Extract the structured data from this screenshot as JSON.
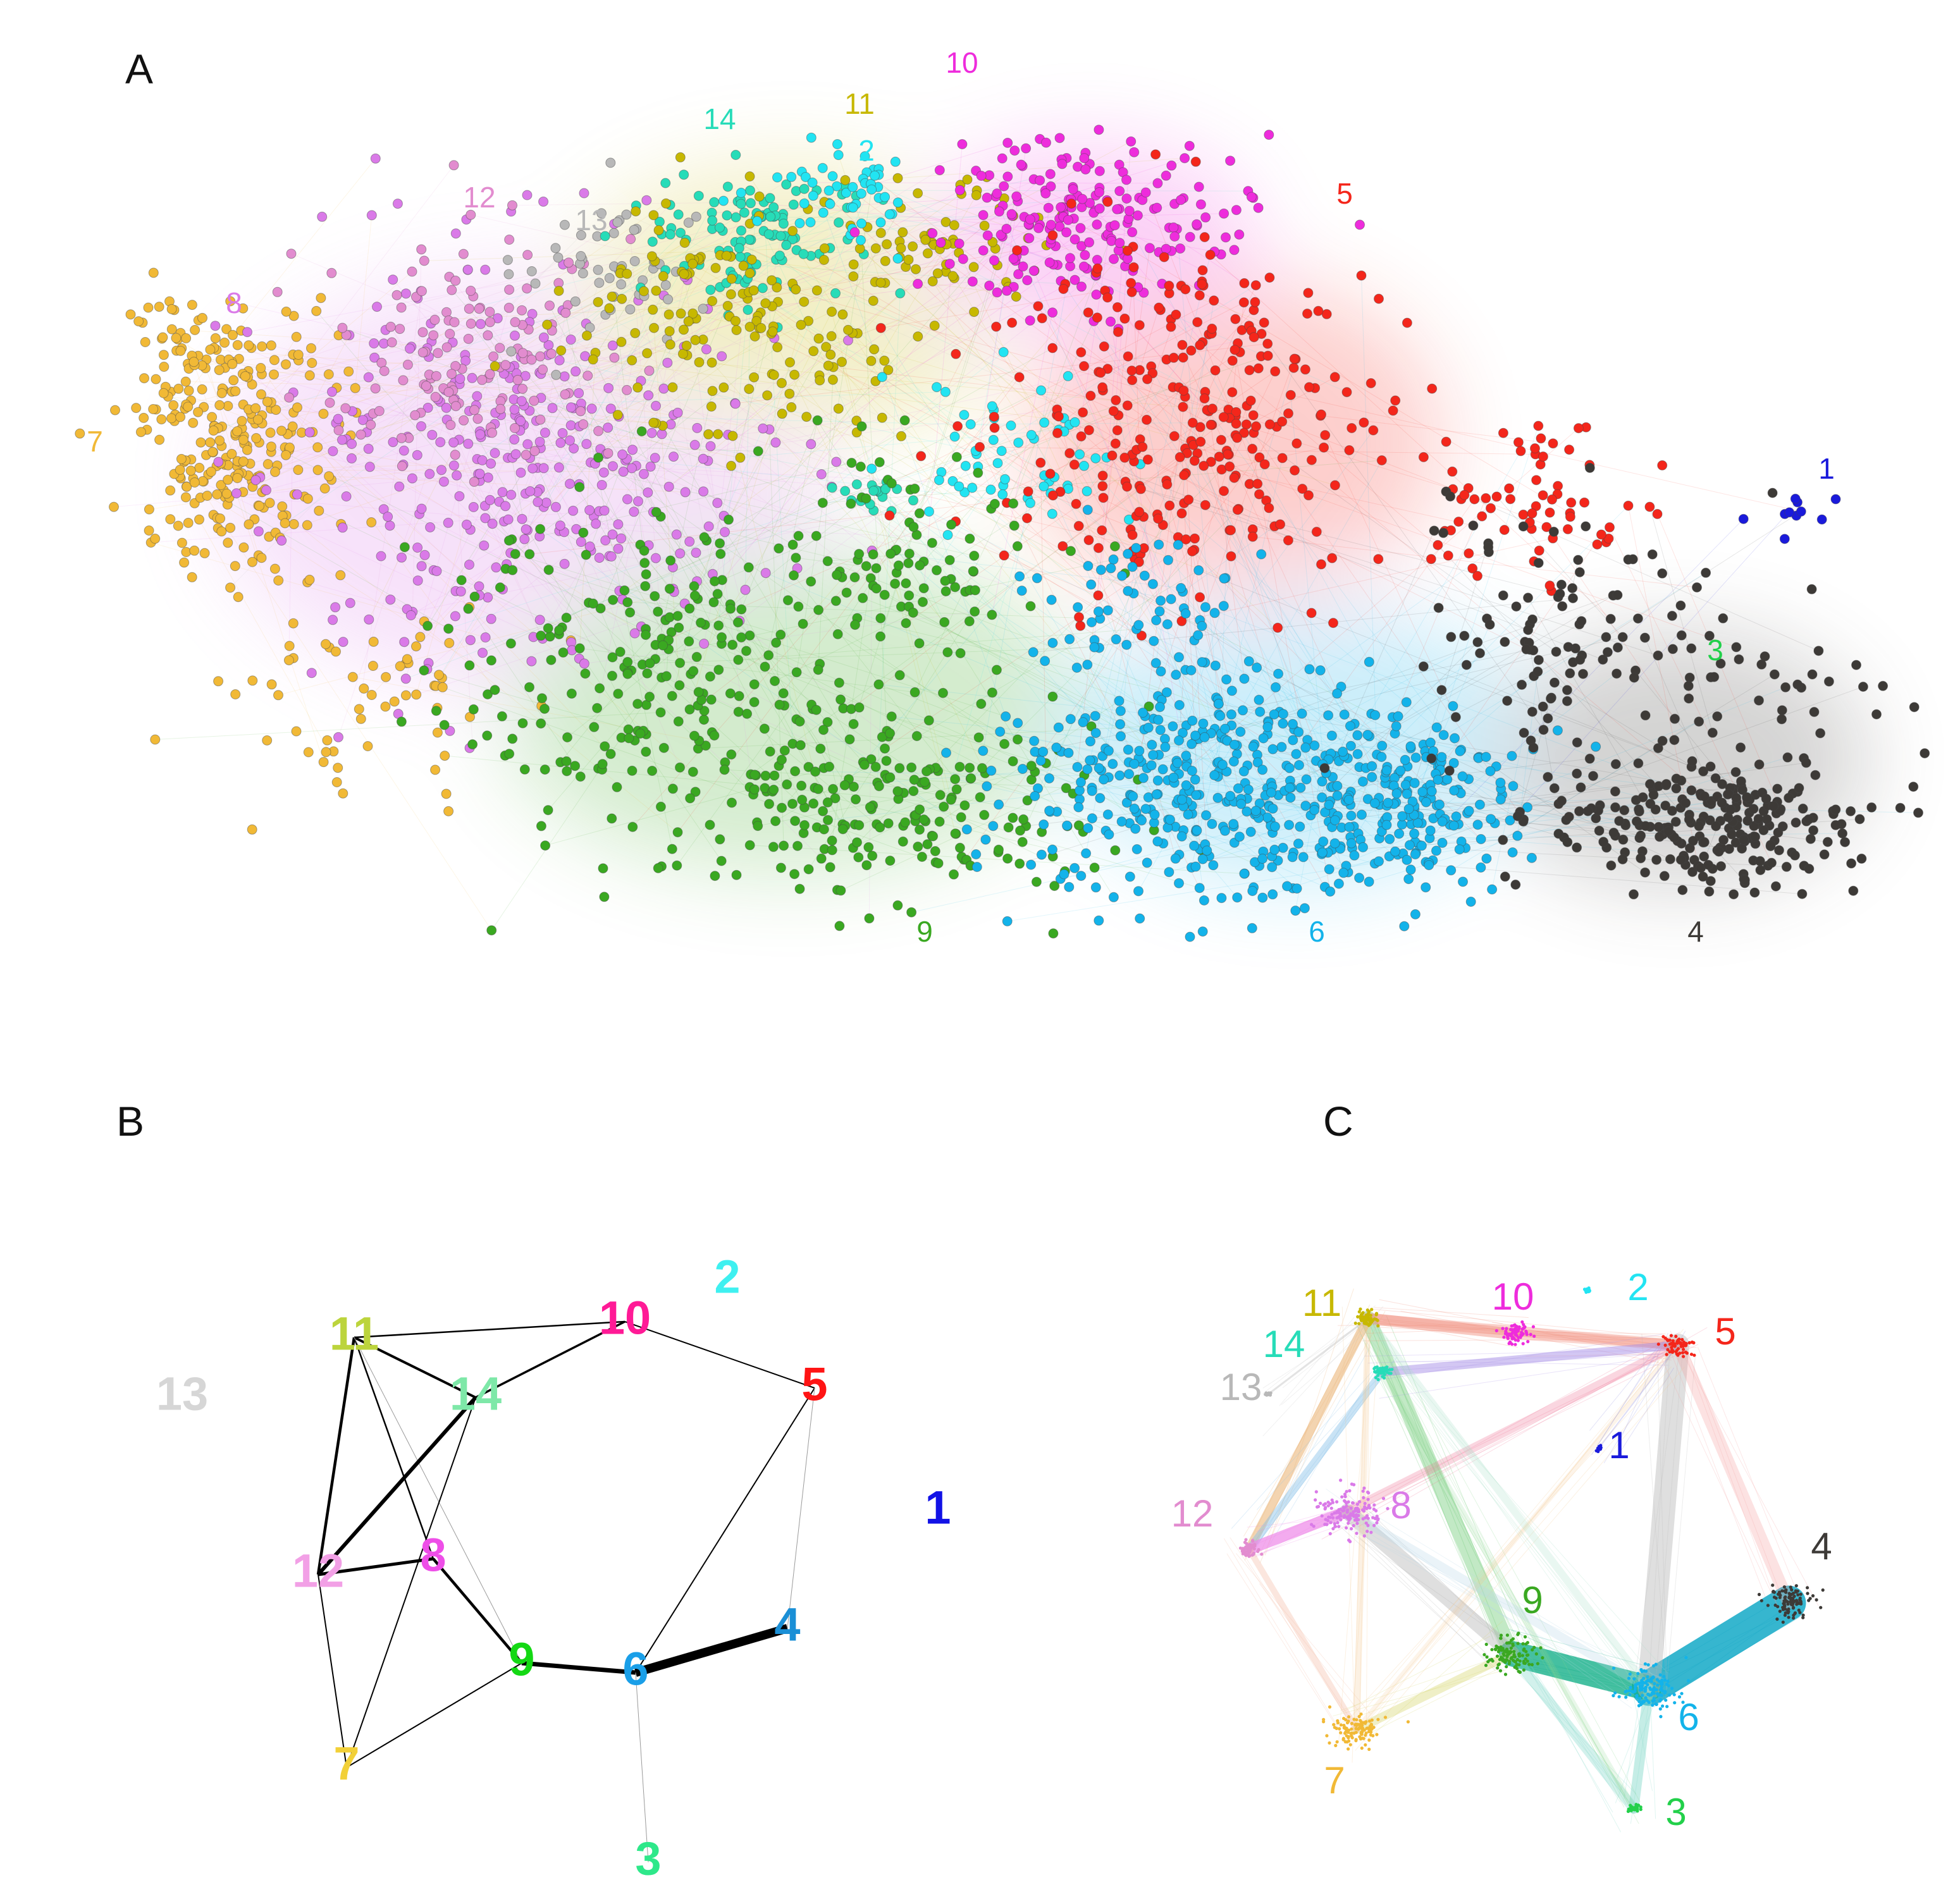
{
  "panels": {
    "a": {
      "letter": "A"
    },
    "b": {
      "letter": "B"
    },
    "c": {
      "letter": "C"
    }
  },
  "clusters": [
    {
      "id": "1",
      "label": "1",
      "color": "#1a1adb"
    },
    {
      "id": "2",
      "label": "2",
      "color": "#22e4f2"
    },
    {
      "id": "3",
      "label": "3",
      "color": "#22d04a"
    },
    {
      "id": "4",
      "label": "4",
      "color": "#3d3a37"
    },
    {
      "id": "5",
      "label": "5",
      "color": "#f4261b"
    },
    {
      "id": "6",
      "label": "6",
      "color": "#13b3ea"
    },
    {
      "id": "7",
      "label": "7",
      "color": "#f1b936"
    },
    {
      "id": "8",
      "label": "8",
      "color": "#da7ae8"
    },
    {
      "id": "9",
      "label": "9",
      "color": "#3aa821"
    },
    {
      "id": "10",
      "label": "10",
      "color": "#ee2cdc"
    },
    {
      "id": "11",
      "label": "11",
      "color": "#c7b800"
    },
    {
      "id": "12",
      "label": "12",
      "color": "#e28ccf"
    },
    {
      "id": "13",
      "label": "13",
      "color": "#b8b8b8"
    },
    {
      "id": "14",
      "label": "14",
      "color": "#27dcb8"
    }
  ],
  "b_colors": {
    "1": "#1212e6",
    "2": "#3ff0f0",
    "3": "#2ee88a",
    "4": "#1a8fd6",
    "5": "#ff1414",
    "6": "#1a9fe8",
    "7": "#f2d038",
    "8": "#ee4ee8",
    "9": "#14d814",
    "10": "#ff1a96",
    "11": "#bcd43c",
    "12": "#f2a0e6",
    "13": "#d6d6d6",
    "14": "#7ee8a8"
  },
  "b_edges": [
    {
      "from": "11",
      "to": "10",
      "weight": 2.5
    },
    {
      "from": "11",
      "to": "14",
      "weight": 4
    },
    {
      "from": "11",
      "to": "12",
      "weight": 4.5
    },
    {
      "from": "11",
      "to": "8",
      "weight": 2.5
    },
    {
      "from": "11",
      "to": "9",
      "weight": 1
    },
    {
      "from": "14",
      "to": "10",
      "weight": 3.5
    },
    {
      "from": "14",
      "to": "12",
      "weight": 6
    },
    {
      "from": "14",
      "to": "7",
      "weight": 2
    },
    {
      "from": "12",
      "to": "8",
      "weight": 5
    },
    {
      "from": "12",
      "to": "7",
      "weight": 2
    },
    {
      "from": "8",
      "to": "9",
      "weight": 4.5
    },
    {
      "from": "7",
      "to": "9",
      "weight": 2
    },
    {
      "from": "9",
      "to": "6",
      "weight": 7
    },
    {
      "from": "6",
      "to": "4",
      "weight": 14
    },
    {
      "from": "6",
      "to": "5",
      "weight": 2
    },
    {
      "from": "6",
      "to": "3",
      "weight": 1
    },
    {
      "from": "10",
      "to": "5",
      "weight": 2
    },
    {
      "from": "5",
      "to": "4",
      "weight": 1
    }
  ],
  "c_edges": [
    {
      "from": "6",
      "to": "4",
      "color": "#13a9c7",
      "opacity": 0.85,
      "weight": 55
    },
    {
      "from": "9",
      "to": "6",
      "color": "#17b08a",
      "opacity": 0.8,
      "weight": 40
    },
    {
      "from": "11",
      "to": "9",
      "color": "#4fc05a",
      "opacity": 0.35,
      "weight": 24
    },
    {
      "from": "11",
      "to": "10",
      "color": "#f08a78",
      "opacity": 0.45,
      "weight": 18
    },
    {
      "from": "11",
      "to": "5",
      "color": "#f08a78",
      "opacity": 0.35,
      "weight": 16
    },
    {
      "from": "10",
      "to": "5",
      "color": "#f08a78",
      "opacity": 0.35,
      "weight": 16
    },
    {
      "from": "14",
      "to": "5",
      "color": "#a890e8",
      "opacity": 0.5,
      "weight": 14
    },
    {
      "from": "11",
      "to": "12",
      "color": "#eab070",
      "opacity": 0.55,
      "weight": 14
    },
    {
      "from": "14",
      "to": "12",
      "color": "#88c0e8",
      "opacity": 0.45,
      "weight": 12
    },
    {
      "from": "12",
      "to": "8",
      "color": "#ee88e8",
      "opacity": 0.7,
      "weight": 18
    },
    {
      "from": "8",
      "to": "9",
      "color": "#b0b0b0",
      "opacity": 0.4,
      "weight": 24
    },
    {
      "from": "8",
      "to": "5",
      "color": "#f07898",
      "opacity": 0.3,
      "weight": 14
    },
    {
      "from": "5",
      "to": "6",
      "color": "#b8b8b8",
      "opacity": 0.45,
      "weight": 36
    },
    {
      "from": "5",
      "to": "4",
      "color": "#f4a0a0",
      "opacity": 0.3,
      "weight": 20
    },
    {
      "from": "9",
      "to": "3",
      "color": "#7ed8c8",
      "opacity": 0.35,
      "weight": 16
    },
    {
      "from": "6",
      "to": "3",
      "color": "#7ed8c8",
      "opacity": 0.45,
      "weight": 16
    },
    {
      "from": "14",
      "to": "3",
      "color": "#8ad890",
      "opacity": 0.2,
      "weight": 10
    },
    {
      "from": "7",
      "to": "9",
      "color": "#d8d870",
      "opacity": 0.4,
      "weight": 14
    },
    {
      "from": "7",
      "to": "12",
      "color": "#f4b8a0",
      "opacity": 0.35,
      "weight": 10
    },
    {
      "from": "7",
      "to": "11",
      "color": "#f4c890",
      "opacity": 0.25,
      "weight": 10
    },
    {
      "from": "7",
      "to": "5",
      "color": "#f4c890",
      "opacity": 0.2,
      "weight": 8
    },
    {
      "from": "8",
      "to": "6",
      "color": "#b8d8e8",
      "opacity": 0.3,
      "weight": 14
    },
    {
      "from": "11",
      "to": "6",
      "color": "#a8e0c8",
      "opacity": 0.25,
      "weight": 12
    },
    {
      "from": "13",
      "to": "11",
      "color": "#c8c8c8",
      "opacity": 0.5,
      "weight": 3
    },
    {
      "from": "1",
      "to": "5",
      "color": "#9090e0",
      "opacity": 0.3,
      "weight": 2
    }
  ]
}
